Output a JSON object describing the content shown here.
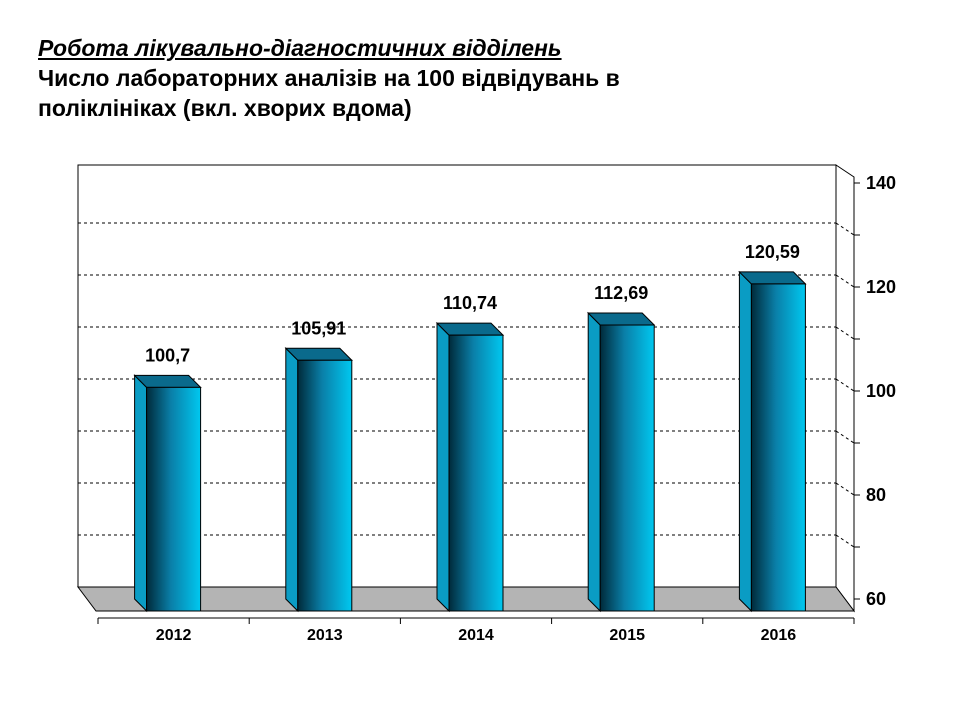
{
  "heading": {
    "line1": "Робота лікувально-діагностичних відділень",
    "line2": "Число лабораторних аналізів  на 100 відвідувань в поліклініках (вкл. хворих вдома)"
  },
  "colors": {
    "bar_front_light": "#00c8f0",
    "bar_front_dark": "#002a3a",
    "bar_top": "#0a6a8c",
    "bar_side": "#0a9cc4",
    "floor": "#b4b4b4",
    "grid": "#000000"
  },
  "chart_data": {
    "type": "bar",
    "categories": [
      "2012",
      "2013",
      "2014",
      "2015",
      "2016"
    ],
    "values": [
      100.7,
      105.91,
      110.74,
      112.69,
      120.59
    ],
    "value_labels": [
      "100,7",
      "105,91",
      "110,74",
      "112,69",
      "120,59"
    ],
    "ylim": [
      60,
      140
    ],
    "yticks": [
      60,
      80,
      100,
      120,
      140
    ],
    "y_axis_side": "right",
    "grid": "dashed horizontal",
    "legend": "none",
    "title": "Число лабораторних аналізів  на 100 відвідувань в поліклініках (вкл. хворих вдома)",
    "xlabel": "",
    "ylabel": ""
  }
}
